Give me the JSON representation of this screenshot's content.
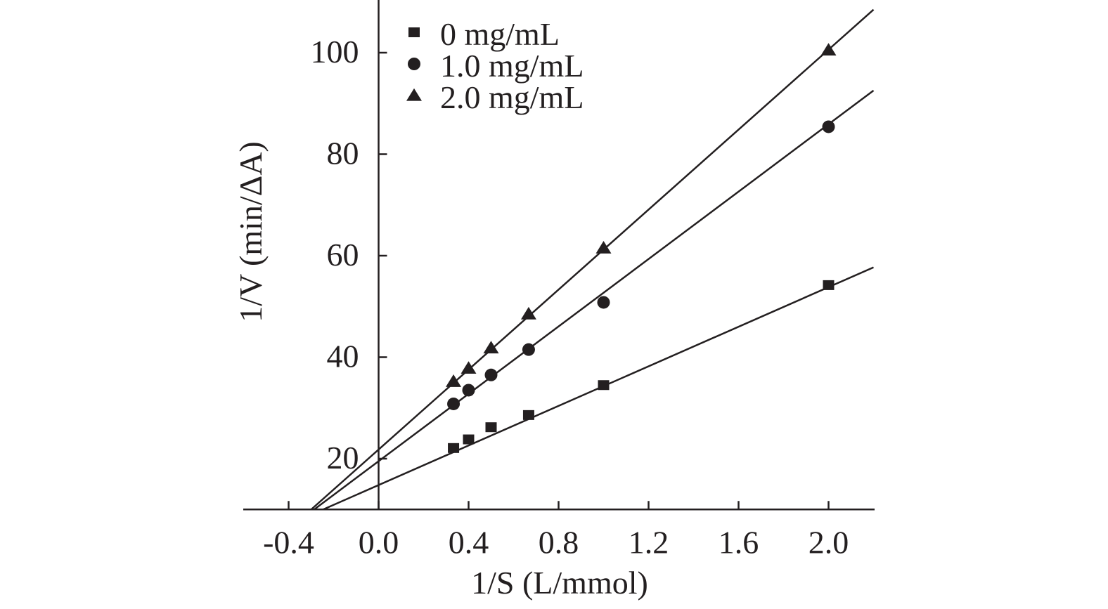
{
  "chart_data": {
    "type": "scatter",
    "title": "",
    "xlabel": "1/S (L/mmol)",
    "ylabel": "1/V (min/ΔA)",
    "xlim": [
      -0.6,
      2.2
    ],
    "ylim": [
      10,
      110
    ],
    "x_axis_at_y": 10,
    "y_axis_at_x": 0,
    "xticks": [
      -0.4,
      0.0,
      0.4,
      0.8,
      1.2,
      1.6,
      2.0
    ],
    "xtick_labels": [
      "-0.4",
      "0.0",
      "0.4",
      "0.8",
      "1.2",
      "1.6",
      "2.0"
    ],
    "yticks": [
      20,
      40,
      60,
      80,
      100
    ],
    "ytick_labels": [
      "20",
      "40",
      "60",
      "80",
      "100"
    ],
    "grid": false,
    "legend_position": "top-left",
    "series": [
      {
        "name": "0 mg/mL",
        "marker": "square",
        "x": [
          0.333,
          0.4,
          0.5,
          0.667,
          1.0,
          2.0
        ],
        "y": [
          22.1,
          23.8,
          26.2,
          28.6,
          34.5,
          54.2
        ],
        "fit": {
          "slope": 19.5,
          "intercept": 14.8
        }
      },
      {
        "name": "1.0 mg/mL",
        "marker": "circle",
        "x": [
          0.333,
          0.4,
          0.5,
          0.667,
          1.0,
          2.0
        ],
        "y": [
          30.8,
          33.5,
          36.5,
          41.5,
          50.8,
          85.4
        ],
        "fit": {
          "slope": 33.2,
          "intercept": 19.5
        }
      },
      {
        "name": "2.0 mg/mL",
        "marker": "triangle",
        "x": [
          0.333,
          0.4,
          0.5,
          0.667,
          1.0,
          2.0
        ],
        "y": [
          35.2,
          37.8,
          41.8,
          48.5,
          61.5,
          100.5
        ],
        "fit": {
          "slope": 39.4,
          "intercept": 21.8
        }
      }
    ]
  },
  "colors": {
    "ink": "#231f20",
    "background": "#ffffff"
  }
}
